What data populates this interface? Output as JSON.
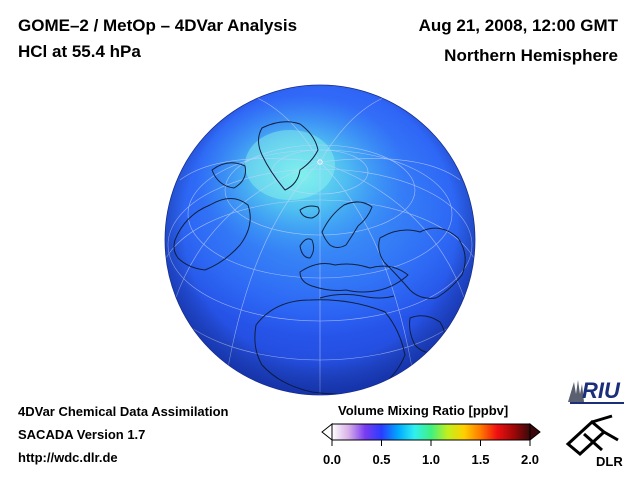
{
  "header": {
    "title_line1": "GOME–2 / MetOp – 4DVar Analysis",
    "title_line2": "HCl at 55.4 hPa",
    "date": "Aug 21, 2008, 12:00 GMT",
    "region": "Northern Hemisphere"
  },
  "footer": {
    "line1": "4DVar Chemical Data Assimilation",
    "line2": "SACADA Version 1.7",
    "line3": "http://wdc.dlr.de"
  },
  "colorbar": {
    "title": "Volume Mixing Ratio [ppbv]",
    "ticks": [
      "0.0",
      "0.5",
      "1.0",
      "1.5",
      "2.0"
    ],
    "range": [
      0.0,
      2.0
    ],
    "colors": [
      "#ffffff",
      "#d8b0e8",
      "#7a3cf0",
      "#2a3cff",
      "#00a8ff",
      "#30f0f0",
      "#40f080",
      "#c0f020",
      "#ffd000",
      "#ff7a00",
      "#f01010",
      "#a00808",
      "#3a0808"
    ]
  },
  "map": {
    "polar_value": 0.9,
    "midlat_value": 0.55,
    "low_value": 0.28,
    "ocean_color": "#2a5cf5",
    "glow_color": "#5ee0ee"
  },
  "logos": {
    "riu_text": "RIU",
    "dlr_text": "DLR"
  }
}
